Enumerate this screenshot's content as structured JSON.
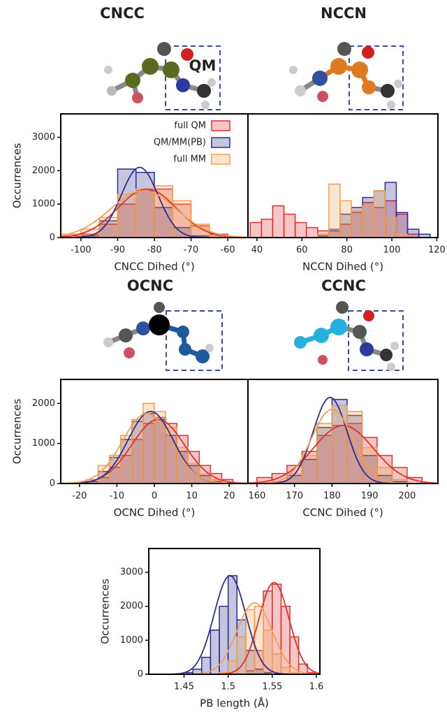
{
  "chart_data": [
    {
      "type": "histogram",
      "title": "CNCC",
      "title_color": "#4b5a23",
      "annotation": "QM",
      "annotation_color": "#3a4aa0",
      "x_label": "CNCC Dihed (°)",
      "y_label": "Occurrences",
      "legend": "upper right",
      "xlim": [
        -105.5,
        -54.5
      ],
      "xticks": [
        -100,
        -90,
        -80,
        -70,
        -60
      ],
      "ylim": [
        0,
        3700
      ],
      "yticks": [
        0,
        1000,
        2000,
        3000
      ],
      "bins": [
        -105,
        -100,
        -95,
        -90,
        -85,
        -80,
        -75,
        -70,
        -65,
        -60,
        -55
      ],
      "series": [
        {
          "name": "full QM",
          "color": "#e0302f",
          "values": [
            50,
            100,
            400,
            1000,
            1400,
            1450,
            1000,
            350,
            100,
            0
          ],
          "fit": {
            "mean": -82,
            "sd": 8,
            "peak": 1450
          }
        },
        {
          "name": "QM/MM(PB)",
          "color": "#2e2e8f",
          "values": [
            0,
            50,
            500,
            2050,
            1950,
            900,
            300,
            50,
            0,
            0
          ],
          "fit": {
            "mean": -84,
            "sd": 5,
            "peak": 2100
          }
        },
        {
          "name": "full MM",
          "color": "#f0a050",
          "values": [
            100,
            250,
            600,
            1300,
            1450,
            1550,
            1100,
            400,
            50,
            0
          ],
          "fit": {
            "mean": -83,
            "sd": 9,
            "peak": 1400
          }
        }
      ]
    },
    {
      "type": "histogram",
      "title": "NCCN",
      "title_color": "#c8661e",
      "x_label": "NCCN Dihed (°)",
      "xlim": [
        36,
        120.5
      ],
      "xticks": [
        40,
        60,
        80,
        100,
        120
      ],
      "ylim": [
        0,
        3700
      ],
      "bins": [
        37,
        42,
        47,
        52,
        57,
        62,
        67,
        72,
        77,
        82,
        87,
        92,
        97,
        102,
        107,
        112,
        117
      ],
      "series": [
        {
          "color": "#e0302f",
          "values": [
            450,
            550,
            950,
            700,
            450,
            300,
            200,
            250,
            400,
            750,
            1050,
            900,
            1100,
            700,
            100,
            0
          ]
        },
        {
          "color": "#2e2e8f",
          "values": [
            0,
            0,
            0,
            0,
            0,
            0,
            50,
            200,
            700,
            900,
            1200,
            1400,
            1650,
            750,
            250,
            100
          ]
        },
        {
          "color": "#f0a050",
          "values": [
            0,
            0,
            0,
            0,
            0,
            0,
            100,
            1600,
            1100,
            800,
            950,
            1400,
            600,
            100,
            0,
            0
          ]
        }
      ]
    },
    {
      "type": "histogram",
      "title": "OCNC",
      "title_color": "#1f5a9a",
      "x_label": "OCNC Dihed (°)",
      "y_label": "Occurrences",
      "xlim": [
        -25,
        25
      ],
      "xticks": [
        -20,
        -10,
        0,
        10,
        20
      ],
      "ylim": [
        0,
        2600
      ],
      "yticks": [
        0,
        1000,
        2000
      ],
      "bins": [
        -18,
        -15,
        -12,
        -9,
        -6,
        -3,
        0,
        3,
        6,
        9,
        12,
        15,
        18,
        21
      ],
      "series": [
        {
          "color": "#e0302f",
          "values": [
            50,
            150,
            400,
            700,
            1100,
            1500,
            1650,
            1500,
            1200,
            800,
            450,
            250,
            100
          ],
          "fit": {
            "mean": 1,
            "sd": 7,
            "peak": 1600
          }
        },
        {
          "color": "#2e2e8f",
          "values": [
            50,
            300,
            650,
            1100,
            1550,
            1750,
            1600,
            1200,
            800,
            450,
            200,
            50,
            0
          ],
          "fit": {
            "mean": -1,
            "sd": 6,
            "peak": 1800
          }
        },
        {
          "color": "#f0a050",
          "values": [
            100,
            450,
            700,
            1200,
            1600,
            2000,
            1800,
            1400,
            900,
            500,
            250,
            100,
            0
          ],
          "fit": {
            "mean": -2,
            "sd": 6.5,
            "peak": 1750
          }
        }
      ]
    },
    {
      "type": "histogram",
      "title": "CCNC",
      "title_color": "#1fa3d0",
      "x_label": "CCNC Dihed (°)",
      "xlim": [
        157.6,
        208.2
      ],
      "xticks": [
        160,
        170,
        180,
        190,
        200
      ],
      "ylim": [
        0,
        2600
      ],
      "bins": [
        160,
        164,
        168,
        172,
        176,
        180,
        184,
        188,
        192,
        196,
        200,
        204
      ],
      "series": [
        {
          "color": "#e0302f",
          "values": [
            150,
            250,
            450,
            800,
            1200,
            1450,
            1500,
            1150,
            700,
            400,
            150
          ],
          "fit": {
            "mean": 183,
            "sd": 8,
            "peak": 1450
          }
        },
        {
          "color": "#2e2e8f",
          "values": [
            0,
            50,
            200,
            600,
            1400,
            2100,
            1700,
            700,
            200,
            50,
            0
          ],
          "fit": {
            "mean": 179.5,
            "sd": 4.5,
            "peak": 2150
          }
        },
        {
          "color": "#f0a050",
          "values": [
            0,
            50,
            250,
            700,
            1500,
            1950,
            1800,
            900,
            400,
            100,
            0
          ],
          "fit": {
            "mean": 180,
            "sd": 5.5,
            "peak": 1850
          }
        }
      ]
    },
    {
      "type": "histogram",
      "x_label": "PB length (Å)",
      "y_label": "Occurrences",
      "xlim": [
        1.41,
        1.604
      ],
      "xticks": [
        1.45,
        1.5,
        1.55,
        1.6
      ],
      "ylim": [
        0,
        3700
      ],
      "yticks": [
        0,
        1000,
        2000,
        3000
      ],
      "bins": [
        1.44,
        1.45,
        1.46,
        1.47,
        1.48,
        1.49,
        1.5,
        1.51,
        1.52,
        1.53,
        1.54,
        1.55,
        1.56,
        1.57,
        1.58,
        1.59,
        1.6
      ],
      "series": [
        {
          "color": "#e0302f",
          "values": [
            0,
            0,
            0,
            0,
            0,
            0,
            0,
            0,
            100,
            700,
            2450,
            2650,
            2000,
            1100,
            300,
            50
          ],
          "fit": {
            "mean": 1.552,
            "sd": 0.017,
            "peak": 2700
          }
        },
        {
          "color": "#2e2e8f",
          "values": [
            0,
            50,
            150,
            500,
            1300,
            2000,
            2900,
            1600,
            700,
            150,
            50,
            0,
            0,
            0,
            0,
            0
          ],
          "fit": {
            "mean": 1.502,
            "sd": 0.018,
            "peak": 2900
          }
        },
        {
          "color": "#f0a050",
          "values": [
            0,
            0,
            0,
            0,
            0,
            50,
            400,
            1100,
            1900,
            2000,
            1300,
            600,
            200,
            50,
            0,
            0
          ],
          "fit": {
            "mean": 1.53,
            "sd": 0.02,
            "peak": 2100
          }
        }
      ]
    }
  ]
}
